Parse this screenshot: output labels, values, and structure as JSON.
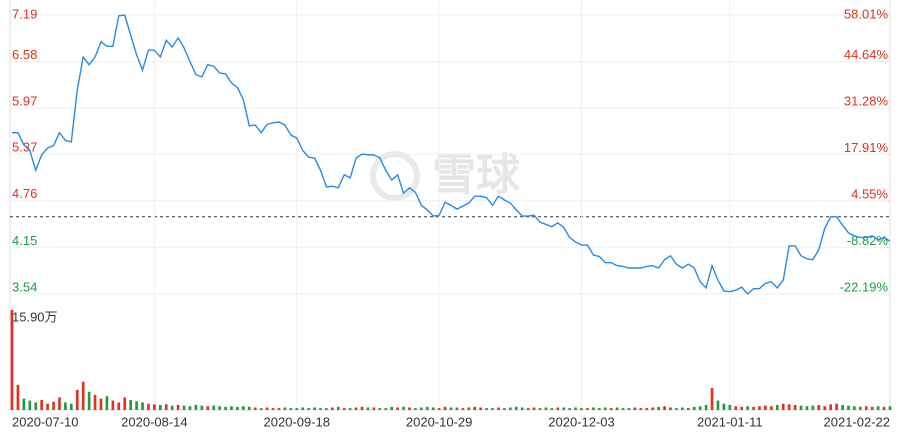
{
  "chart_data": {
    "type": "line",
    "watermark": "雪球",
    "categories": [
      "2020-07-10",
      null,
      null,
      null,
      null,
      null,
      null,
      null,
      null,
      null,
      null,
      null,
      null,
      null,
      null,
      null,
      null,
      null,
      null,
      null,
      null,
      null,
      null,
      null,
      "2020-08-14",
      null,
      null,
      null,
      null,
      null,
      null,
      null,
      null,
      null,
      null,
      null,
      null,
      null,
      null,
      null,
      null,
      null,
      null,
      null,
      null,
      null,
      null,
      null,
      "2020-09-18",
      null,
      null,
      null,
      null,
      null,
      null,
      null,
      null,
      null,
      null,
      null,
      null,
      null,
      null,
      null,
      null,
      null,
      null,
      null,
      null,
      null,
      null,
      null,
      "2020-10-29",
      null,
      null,
      null,
      null,
      null,
      null,
      null,
      null,
      null,
      null,
      null,
      null,
      null,
      null,
      null,
      null,
      null,
      null,
      null,
      null,
      null,
      null,
      null,
      "2020-12-03",
      null,
      null,
      null,
      null,
      null,
      null,
      null,
      null,
      null,
      null,
      null,
      null,
      null,
      null,
      null,
      null,
      null,
      null,
      null,
      null,
      null,
      null,
      null,
      null,
      "2021-01-11",
      null,
      null,
      null,
      null,
      null,
      null,
      null,
      null,
      null,
      null,
      null,
      null,
      null,
      null,
      null,
      null,
      null,
      null,
      null,
      null,
      null,
      null,
      null,
      null,
      null,
      null,
      "2021-02-22"
    ],
    "values": [
      5.65,
      5.65,
      5.49,
      5.42,
      5.16,
      5.36,
      5.45,
      5.48,
      5.65,
      5.55,
      5.53,
      6.21,
      6.64,
      6.54,
      6.64,
      6.84,
      6.78,
      6.78,
      7.18,
      7.19,
      6.93,
      6.67,
      6.47,
      6.73,
      6.73,
      6.64,
      6.86,
      6.77,
      6.89,
      6.76,
      6.58,
      6.41,
      6.38,
      6.54,
      6.52,
      6.43,
      6.42,
      6.3,
      6.24,
      6.08,
      5.74,
      5.75,
      5.65,
      5.76,
      5.78,
      5.79,
      5.75,
      5.62,
      5.58,
      5.42,
      5.33,
      5.32,
      5.16,
      4.94,
      4.95,
      4.93,
      5.1,
      5.06,
      5.32,
      5.37,
      5.36,
      5.36,
      5.32,
      5.16,
      5.03,
      5.1,
      4.86,
      4.93,
      4.87,
      4.7,
      4.64,
      4.56,
      4.57,
      4.74,
      4.7,
      4.65,
      4.69,
      4.73,
      4.82,
      4.82,
      4.8,
      4.7,
      4.82,
      4.77,
      4.73,
      4.64,
      4.56,
      4.56,
      4.57,
      4.48,
      4.45,
      4.42,
      4.47,
      4.41,
      4.28,
      4.22,
      4.18,
      4.18,
      4.05,
      4.03,
      3.95,
      3.95,
      3.91,
      3.9,
      3.88,
      3.88,
      3.88,
      3.9,
      3.91,
      3.88,
      3.99,
      4.04,
      3.93,
      3.88,
      3.93,
      3.88,
      3.7,
      3.62,
      3.91,
      3.72,
      3.58,
      3.57,
      3.59,
      3.63,
      3.54,
      3.61,
      3.61,
      3.68,
      3.7,
      3.62,
      3.72,
      4.17,
      4.17,
      4.04,
      4.0,
      3.99,
      4.12,
      4.4,
      4.55,
      4.55,
      4.44,
      4.34,
      4.3,
      4.28,
      4.28,
      4.3,
      4.25,
      4.28,
      4.23
    ],
    "color": "#2a8be3",
    "ylim": [
      3.54,
      7.19
    ],
    "yticks": [
      7.19,
      6.58,
      5.97,
      5.37,
      4.76,
      4.15,
      3.54
    ],
    "y2lim": [
      -22.19,
      58.01
    ],
    "y2ticks": [
      {
        "value": 58.01,
        "label": "58.01%"
      },
      {
        "value": 44.64,
        "label": "44.64%"
      },
      {
        "value": 31.28,
        "label": "31.28%"
      },
      {
        "value": 17.91,
        "label": "17.91%"
      },
      {
        "value": 4.55,
        "label": "4.55%"
      },
      {
        "value": -8.82,
        "label": "-8.82%"
      },
      {
        "value": -22.19,
        "label": "-22.19%"
      }
    ],
    "grid": true,
    "up_color": "#e0321e",
    "down_color": "#1e9b46",
    "volume": {
      "ylim": [
        0,
        15.9
      ],
      "yticks": [
        {
          "value": 15.9,
          "label": "15.90万"
        }
      ],
      "values": [
        15.9,
        4.0,
        1.8,
        1.5,
        1.2,
        1.6,
        1.0,
        1.3,
        2.0,
        1.2,
        1.0,
        3.2,
        4.5,
        2.9,
        2.4,
        1.8,
        2.2,
        1.5,
        1.2,
        2.0,
        1.6,
        1.4,
        1.2,
        1.0,
        0.9,
        0.8,
        0.9,
        0.7,
        0.8,
        0.7,
        0.6,
        0.8,
        0.7,
        0.6,
        0.7,
        0.6,
        0.5,
        0.6,
        0.5,
        0.6,
        0.5,
        0.4,
        0.3,
        0.4,
        0.3,
        0.3,
        0.4,
        0.3,
        0.3,
        0.4,
        0.3,
        0.4,
        0.3,
        0.3,
        0.4,
        0.5,
        0.3,
        0.3,
        0.4,
        0.5,
        0.4,
        0.4,
        0.3,
        0.3,
        0.5,
        0.4,
        0.5,
        0.4,
        0.3,
        0.4,
        0.5,
        0.4,
        0.3,
        0.5,
        0.4,
        0.4,
        0.3,
        0.4,
        0.5,
        0.4,
        0.3,
        0.3,
        0.4,
        0.3,
        0.4,
        0.5,
        0.4,
        0.3,
        0.4,
        0.3,
        0.4,
        0.3,
        0.4,
        0.4,
        0.3,
        0.4,
        0.3,
        0.3,
        0.4,
        0.3,
        0.4,
        0.3,
        0.4,
        0.3,
        0.3,
        0.4,
        0.3,
        0.3,
        0.4,
        0.5,
        0.6,
        0.4,
        0.3,
        0.4,
        0.3,
        0.5,
        0.6,
        0.8,
        3.5,
        1.5,
        1.0,
        0.8,
        0.6,
        0.5,
        0.6,
        0.5,
        0.6,
        0.7,
        0.6,
        0.8,
        1.0,
        0.9,
        0.8,
        0.7,
        0.6,
        0.7,
        0.8,
        0.6,
        0.9,
        1.0,
        0.8,
        0.7,
        0.6,
        0.5,
        0.6,
        0.5,
        0.6,
        0.5,
        0.6
      ]
    }
  }
}
